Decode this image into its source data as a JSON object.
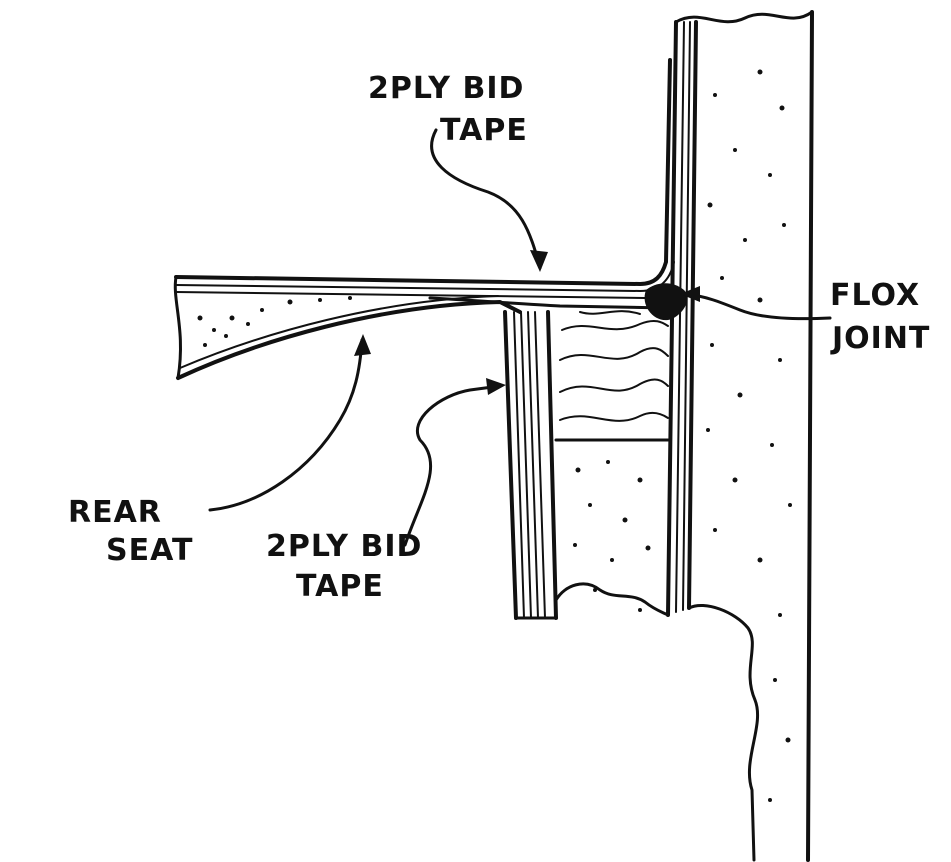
{
  "labels": {
    "top_tape_line1": "2PLY BID",
    "top_tape_line2": "TAPE",
    "flox_line1": "FLOX",
    "flox_line2": "JOINT",
    "rear_seat_line1": "REAR",
    "rear_seat_line2": "SEAT",
    "bottom_tape_line1": "2PLY BID",
    "bottom_tape_line2": "TAPE"
  },
  "colors": {
    "ink": "#111111",
    "paper": "#ffffff"
  }
}
